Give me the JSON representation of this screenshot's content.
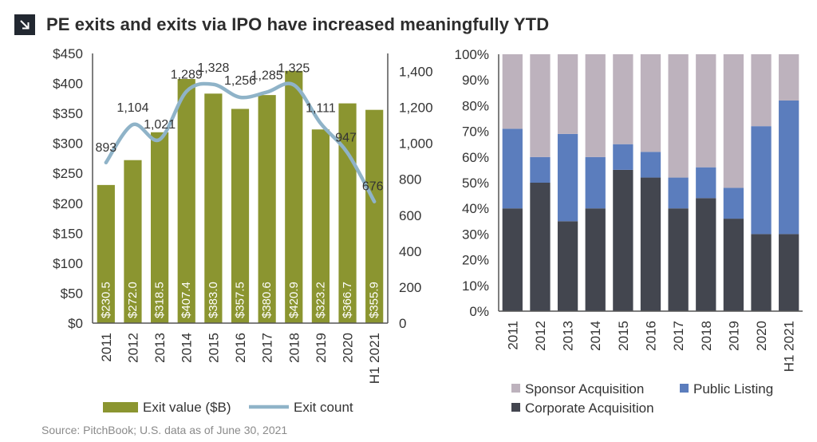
{
  "header": {
    "title": "PE exits and exits via IPO have increased meaningfully YTD",
    "icon": "arrow-down-right-icon",
    "icon_bg": "#222831"
  },
  "source": "Source: PitchBook; U.S. data as of June 30, 2021",
  "colors": {
    "exit_value": "#8b9530",
    "exit_count": "#8fb3c8",
    "sponsor": "#bdb2bd",
    "public": "#5b7dbd",
    "corporate": "#43464f"
  },
  "chart_data": [
    {
      "type": "bar",
      "categories": [
        "2011",
        "2012",
        "2013",
        "2014",
        "2015",
        "2016",
        "2017",
        "2018",
        "2019",
        "2020",
        "H1 2021"
      ],
      "series": [
        {
          "name": "Exit value ($B)",
          "type": "bar",
          "axis": "left",
          "values": [
            230.5,
            272.0,
            318.5,
            407.4,
            383.0,
            357.5,
            380.6,
            420.9,
            323.2,
            366.7,
            355.9
          ],
          "labels": [
            "$230.5",
            "$272.0",
            "$318.5",
            "$407.4",
            "$383.0",
            "$357.5",
            "$380.6",
            "$420.9",
            "$323.2",
            "$366.7",
            "$355.9"
          ]
        },
        {
          "name": "Exit count",
          "type": "line",
          "axis": "right",
          "values": [
            893,
            1104,
            1021,
            1289,
            1328,
            1256,
            1285,
            1325,
            1111,
            947,
            676
          ],
          "labels": [
            "893",
            "1,104",
            "1,021",
            "1,289",
            "1,328",
            "1,256",
            "1,285",
            "1,325",
            "1,111",
            "947",
            "676"
          ]
        }
      ],
      "y_left": {
        "ylim": [
          0,
          450
        ],
        "ticks": [
          0,
          50,
          100,
          150,
          200,
          250,
          300,
          350,
          400,
          450
        ],
        "tick_labels": [
          "$0",
          "$50",
          "$100",
          "$150",
          "$200",
          "$250",
          "$300",
          "$350",
          "$400",
          "$450"
        ]
      },
      "y_right": {
        "ylim": [
          0,
          1500
        ],
        "ticks": [
          0,
          200,
          400,
          600,
          800,
          1000,
          1200,
          1400
        ],
        "tick_labels": [
          "0",
          "200",
          "400",
          "600",
          "800",
          "1,000",
          "1,200",
          "1,400"
        ]
      },
      "legend": {
        "placement": "bottom",
        "entries": [
          "Exit value ($B)",
          "Exit count"
        ]
      },
      "grid": false
    },
    {
      "type": "bar",
      "stacked": true,
      "categories": [
        "2011",
        "2012",
        "2013",
        "2014",
        "2015",
        "2016",
        "2017",
        "2018",
        "2019",
        "2020",
        "H1 2021"
      ],
      "series": [
        {
          "name": "Corporate Acquisition",
          "values": [
            40,
            50,
            35,
            40,
            55,
            52,
            40,
            44,
            36,
            30,
            30
          ]
        },
        {
          "name": "Public Listing",
          "values": [
            31,
            10,
            34,
            20,
            10,
            10,
            12,
            12,
            12,
            42,
            52
          ]
        },
        {
          "name": "Sponsor Acquisition",
          "values": [
            29,
            40,
            31,
            40,
            35,
            38,
            48,
            44,
            52,
            28,
            18
          ]
        }
      ],
      "ylim": [
        0,
        100
      ],
      "y_ticks": [
        0,
        10,
        20,
        30,
        40,
        50,
        60,
        70,
        80,
        90,
        100
      ],
      "y_tick_labels": [
        "0%",
        "10%",
        "20%",
        "30%",
        "40%",
        "50%",
        "60%",
        "70%",
        "80%",
        "90%",
        "100%"
      ],
      "legend": {
        "placement": "bottom",
        "entries": [
          "Sponsor Acquisition",
          "Public Listing",
          "Corporate Acquisition"
        ]
      },
      "grid": false
    }
  ]
}
